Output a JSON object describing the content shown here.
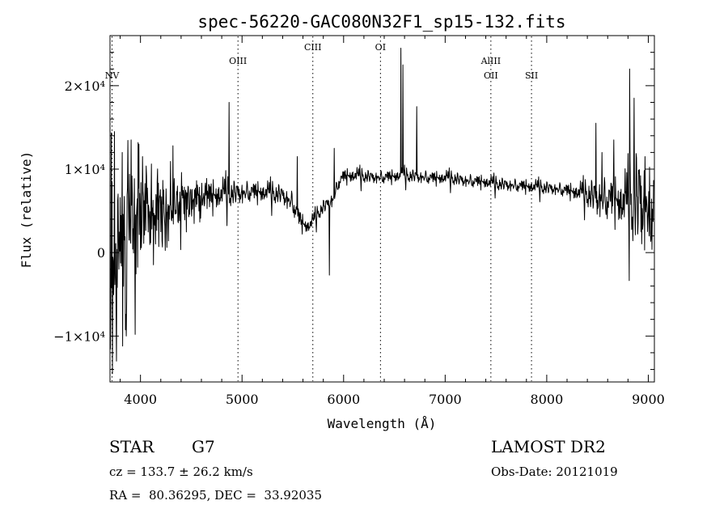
{
  "chart_data": {
    "type": "line",
    "title": "spec-56220-GAC080N32F1_sp15-132.fits",
    "xlabel": "Wavelength (Å)",
    "ylabel": "Flux (relative)",
    "xlim": [
      3700,
      9060
    ],
    "ylim": [
      -15500,
      26000
    ],
    "x_ticks": [
      4000,
      5000,
      6000,
      7000,
      8000,
      9000
    ],
    "y_ticks": [
      {
        "value": 20000,
        "label": "2×10⁴"
      },
      {
        "value": 10000,
        "label": "1×10⁴"
      },
      {
        "value": 0,
        "label": "0"
      },
      {
        "value": -10000,
        "label": "−1×10⁴"
      }
    ],
    "grid": false,
    "lines": [
      {
        "name": "NV",
        "wavelength": 3720,
        "label_row": "lower"
      },
      {
        "name": "OIII",
        "wavelength": 4960,
        "label_row": "middle"
      },
      {
        "name": "CIII",
        "wavelength": 5697,
        "label_row": "upper"
      },
      {
        "name": "OI",
        "wavelength": 6363,
        "label_row": "upper"
      },
      {
        "name": "AlIII",
        "wavelength": 7450,
        "label_row": "middle"
      },
      {
        "name": "OII",
        "wavelength": 7450,
        "label_row": "lower"
      },
      {
        "name": "SII",
        "wavelength": 7850,
        "label_row": "lower"
      }
    ],
    "series": [
      {
        "x": [
          3700,
          3750,
          3800,
          3850,
          3900,
          3950,
          4000,
          4100,
          4200,
          4300,
          4400,
          4500,
          4600,
          4700,
          4800,
          4860,
          4900,
          5000,
          5100,
          5200,
          5300,
          5400,
          5500,
          5550,
          5600,
          5650,
          5700,
          5750,
          5800,
          5850,
          5900,
          5950,
          6000,
          6100,
          6200,
          6300,
          6400,
          6500,
          6560,
          6600,
          6700,
          6800,
          6900,
          7000,
          7100,
          7200,
          7300,
          7400,
          7500,
          7600,
          7700,
          7800,
          7900,
          8000,
          8100,
          8200,
          8300,
          8400,
          8500,
          8600,
          8700,
          8800,
          8850,
          8900,
          8950,
          9000,
          9050
        ],
        "y": [
          -3000,
          -1000,
          1000,
          2000,
          3000,
          3500,
          4000,
          4500,
          5000,
          5500,
          6000,
          6300,
          6600,
          6900,
          7100,
          7200,
          7200,
          7300,
          7400,
          7300,
          7200,
          7000,
          6000,
          4500,
          3500,
          3200,
          3800,
          4800,
          5500,
          6000,
          6500,
          8500,
          9200,
          9300,
          9200,
          9100,
          9100,
          9200,
          9300,
          9300,
          9200,
          9100,
          9000,
          9000,
          8900,
          8700,
          8600,
          8500,
          8300,
          8200,
          8100,
          8000,
          7900,
          7800,
          7700,
          7500,
          7300,
          7100,
          6800,
          6600,
          6400,
          6000,
          6500,
          7000,
          6500,
          6000,
          6500
        ],
        "noise": [
          9000,
          8000,
          7000,
          6000,
          5500,
          5000,
          4500,
          3500,
          2800,
          2300,
          1800,
          1500,
          1300,
          1100,
          1000,
          1000,
          900,
          800,
          700,
          700,
          700,
          700,
          800,
          700,
          600,
          500,
          500,
          500,
          500,
          500,
          500,
          500,
          500,
          500,
          450,
          450,
          450,
          450,
          450,
          450,
          450,
          450,
          450,
          450,
          450,
          450,
          450,
          450,
          450,
          450,
          450,
          450,
          450,
          450,
          450,
          500,
          600,
          900,
          1400,
          1500,
          1600,
          2200,
          3000,
          3500,
          3500,
          3500,
          3500
        ]
      }
    ],
    "spikes": [
      {
        "x": 3725,
        "y": -14500
      },
      {
        "x": 3745,
        "y": 14500
      },
      {
        "x": 3765,
        "y": -13000
      },
      {
        "x": 3820,
        "y": 12000
      },
      {
        "x": 3860,
        "y": -10000
      },
      {
        "x": 3910,
        "y": 13500
      },
      {
        "x": 3950,
        "y": -9800
      },
      {
        "x": 3985,
        "y": 13000
      },
      {
        "x": 4020,
        "y": 11500
      },
      {
        "x": 4872,
        "y": 18000
      },
      {
        "x": 5545,
        "y": 11500
      },
      {
        "x": 5860,
        "y": -2700
      },
      {
        "x": 5910,
        "y": 12500
      },
      {
        "x": 6563,
        "y": 24500
      },
      {
        "x": 6583,
        "y": 22500
      },
      {
        "x": 6720,
        "y": 17500
      },
      {
        "x": 8483,
        "y": 15500
      },
      {
        "x": 8545,
        "y": 12000
      },
      {
        "x": 8662,
        "y": 13500
      },
      {
        "x": 8815,
        "y": 22000
      },
      {
        "x": 8860,
        "y": 18500
      },
      {
        "x": 8930,
        "y": 2500
      },
      {
        "x": 8970,
        "y": 11500
      },
      {
        "x": 9010,
        "y": 2000
      }
    ]
  },
  "info": {
    "object_class": "STAR",
    "subclass": "G7",
    "survey": "LAMOST DR2",
    "redshift": "cz = 133.7 ± 26.2 km/s",
    "obs_date": "Obs-Date: 20121019",
    "coordinates": "RA =  80.36295, DEC =  33.92035"
  }
}
